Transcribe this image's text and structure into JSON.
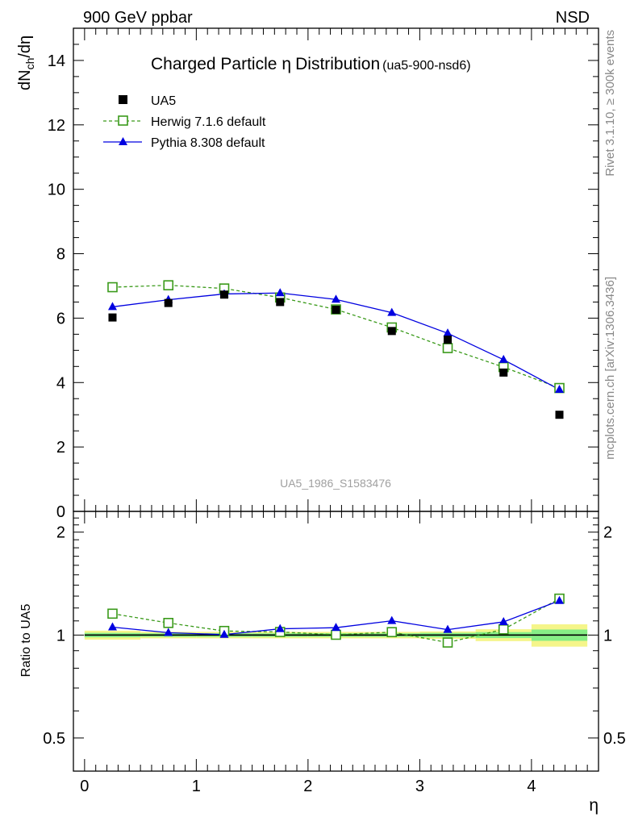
{
  "header": {
    "left": "900 GeV ppbar",
    "right": "NSD"
  },
  "side_labels": {
    "rivet": "Rivet 3.1.10, ≥ 300k events",
    "mcplots": "mcplots.cern.ch [arXiv:1306.3436]"
  },
  "colors": {
    "data": "#000000",
    "herwig": "#3a9a1a",
    "pythia": "#0000e0",
    "band_inner": "#86ee86",
    "band_outer": "#f5f58a"
  },
  "chart_data": [
    {
      "type": "scatter",
      "title_main": "Charged Particle",
      "title_symbol": "η",
      "title_rest": "Distribution",
      "title_id": "(ua5-900-nsd6)",
      "watermark": "UA5_1986_S1583476",
      "ylabel_main": "dN",
      "ylabel_sub": "ch",
      "ylabel_rest": "/dη",
      "ylim": [
        0,
        15
      ],
      "y_ticks": [
        "0",
        "2",
        "4",
        "6",
        "8",
        "10",
        "12",
        "14"
      ],
      "x": [
        0.25,
        0.75,
        1.25,
        1.75,
        2.25,
        2.75,
        3.25,
        3.75,
        4.25
      ],
      "series": [
        {
          "name": "UA5",
          "marker": "filled-square",
          "values": [
            6.02,
            6.47,
            6.73,
            6.5,
            6.26,
            5.6,
            5.33,
            4.31,
            3.0
          ]
        },
        {
          "name": "Herwig 7.1.6 default",
          "marker": "open-square",
          "line": "dashed",
          "values": [
            6.96,
            7.02,
            6.92,
            6.64,
            6.27,
            5.71,
            5.07,
            4.48,
            3.83
          ]
        },
        {
          "name": "Pythia 8.308 default",
          "marker": "filled-triangle",
          "line": "solid",
          "values": [
            6.35,
            6.57,
            6.75,
            6.78,
            6.58,
            6.17,
            5.53,
            4.71,
            3.78
          ]
        }
      ]
    },
    {
      "type": "line",
      "ylabel": "Ratio to UA5",
      "ylim": [
        0.4,
        2.3
      ],
      "y_scale": "log",
      "xlabel": "η",
      "xlim": [
        -0.1,
        4.6
      ],
      "x_ticks": [
        "0",
        "1",
        "2",
        "3",
        "4"
      ],
      "y_ticks": [
        "0.5",
        "1",
        "2"
      ],
      "y_ticks_right": [
        "0.5",
        "1",
        "2"
      ],
      "bins": [
        [
          0,
          0.5
        ],
        [
          0.5,
          1
        ],
        [
          1,
          1.5
        ],
        [
          1.5,
          2
        ],
        [
          2,
          2.5
        ],
        [
          2.5,
          3
        ],
        [
          3,
          3.5
        ],
        [
          3.5,
          4
        ],
        [
          4,
          4.5
        ]
      ],
      "band_inner": [
        0.015,
        0.012,
        0.012,
        0.012,
        0.012,
        0.012,
        0.015,
        0.02,
        0.038
      ],
      "band_outer": [
        0.03,
        0.022,
        0.022,
        0.022,
        0.022,
        0.022,
        0.025,
        0.04,
        0.075
      ],
      "x": [
        0.25,
        0.75,
        1.25,
        1.75,
        2.25,
        2.75,
        3.25,
        3.75,
        4.25
      ],
      "series": [
        {
          "name": "Herwig 7.1.6 default",
          "values": [
            1.155,
            1.085,
            1.028,
            1.021,
            1.002,
            1.02,
            0.951,
            1.039,
            1.278
          ]
        },
        {
          "name": "Pythia 8.308 default",
          "values": [
            1.055,
            1.016,
            1.003,
            1.043,
            1.051,
            1.101,
            1.037,
            1.093,
            1.26
          ]
        }
      ]
    }
  ]
}
